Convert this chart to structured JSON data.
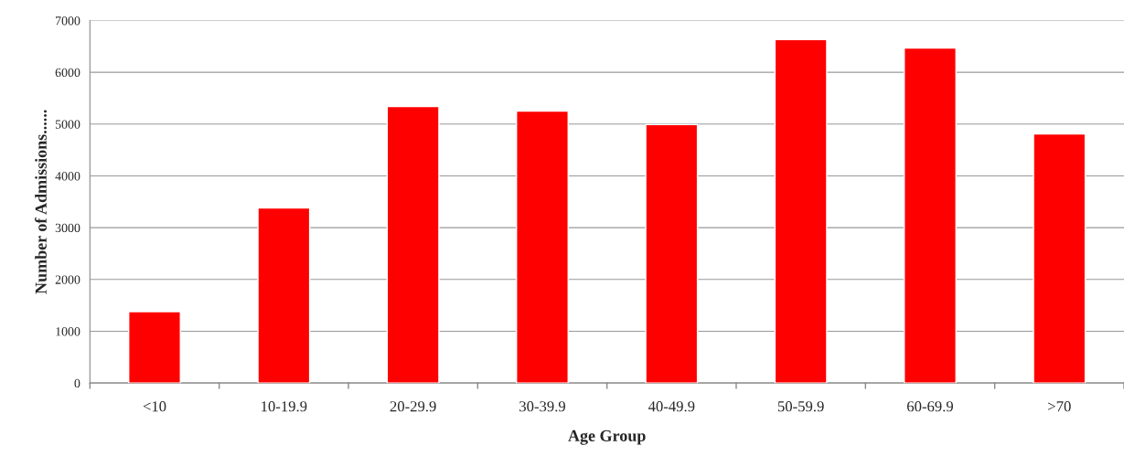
{
  "chart_data": {
    "type": "bar",
    "xlabel": "Age Group",
    "ylabel": "Number of Admissions......",
    "categories": [
      "<10",
      "10-19.9",
      "20-29.9",
      "30-39.9",
      "40-49.9",
      "50-59.9",
      "60-69.9",
      ">70"
    ],
    "values": [
      1380,
      3380,
      5340,
      5250,
      4990,
      6630,
      6470,
      4810
    ],
    "color": "#ff0000",
    "ylim": [
      0,
      7000
    ],
    "yticks": [
      0,
      1000,
      2000,
      3000,
      4000,
      5000,
      6000,
      7000
    ],
    "grid": "y",
    "legend": false
  }
}
